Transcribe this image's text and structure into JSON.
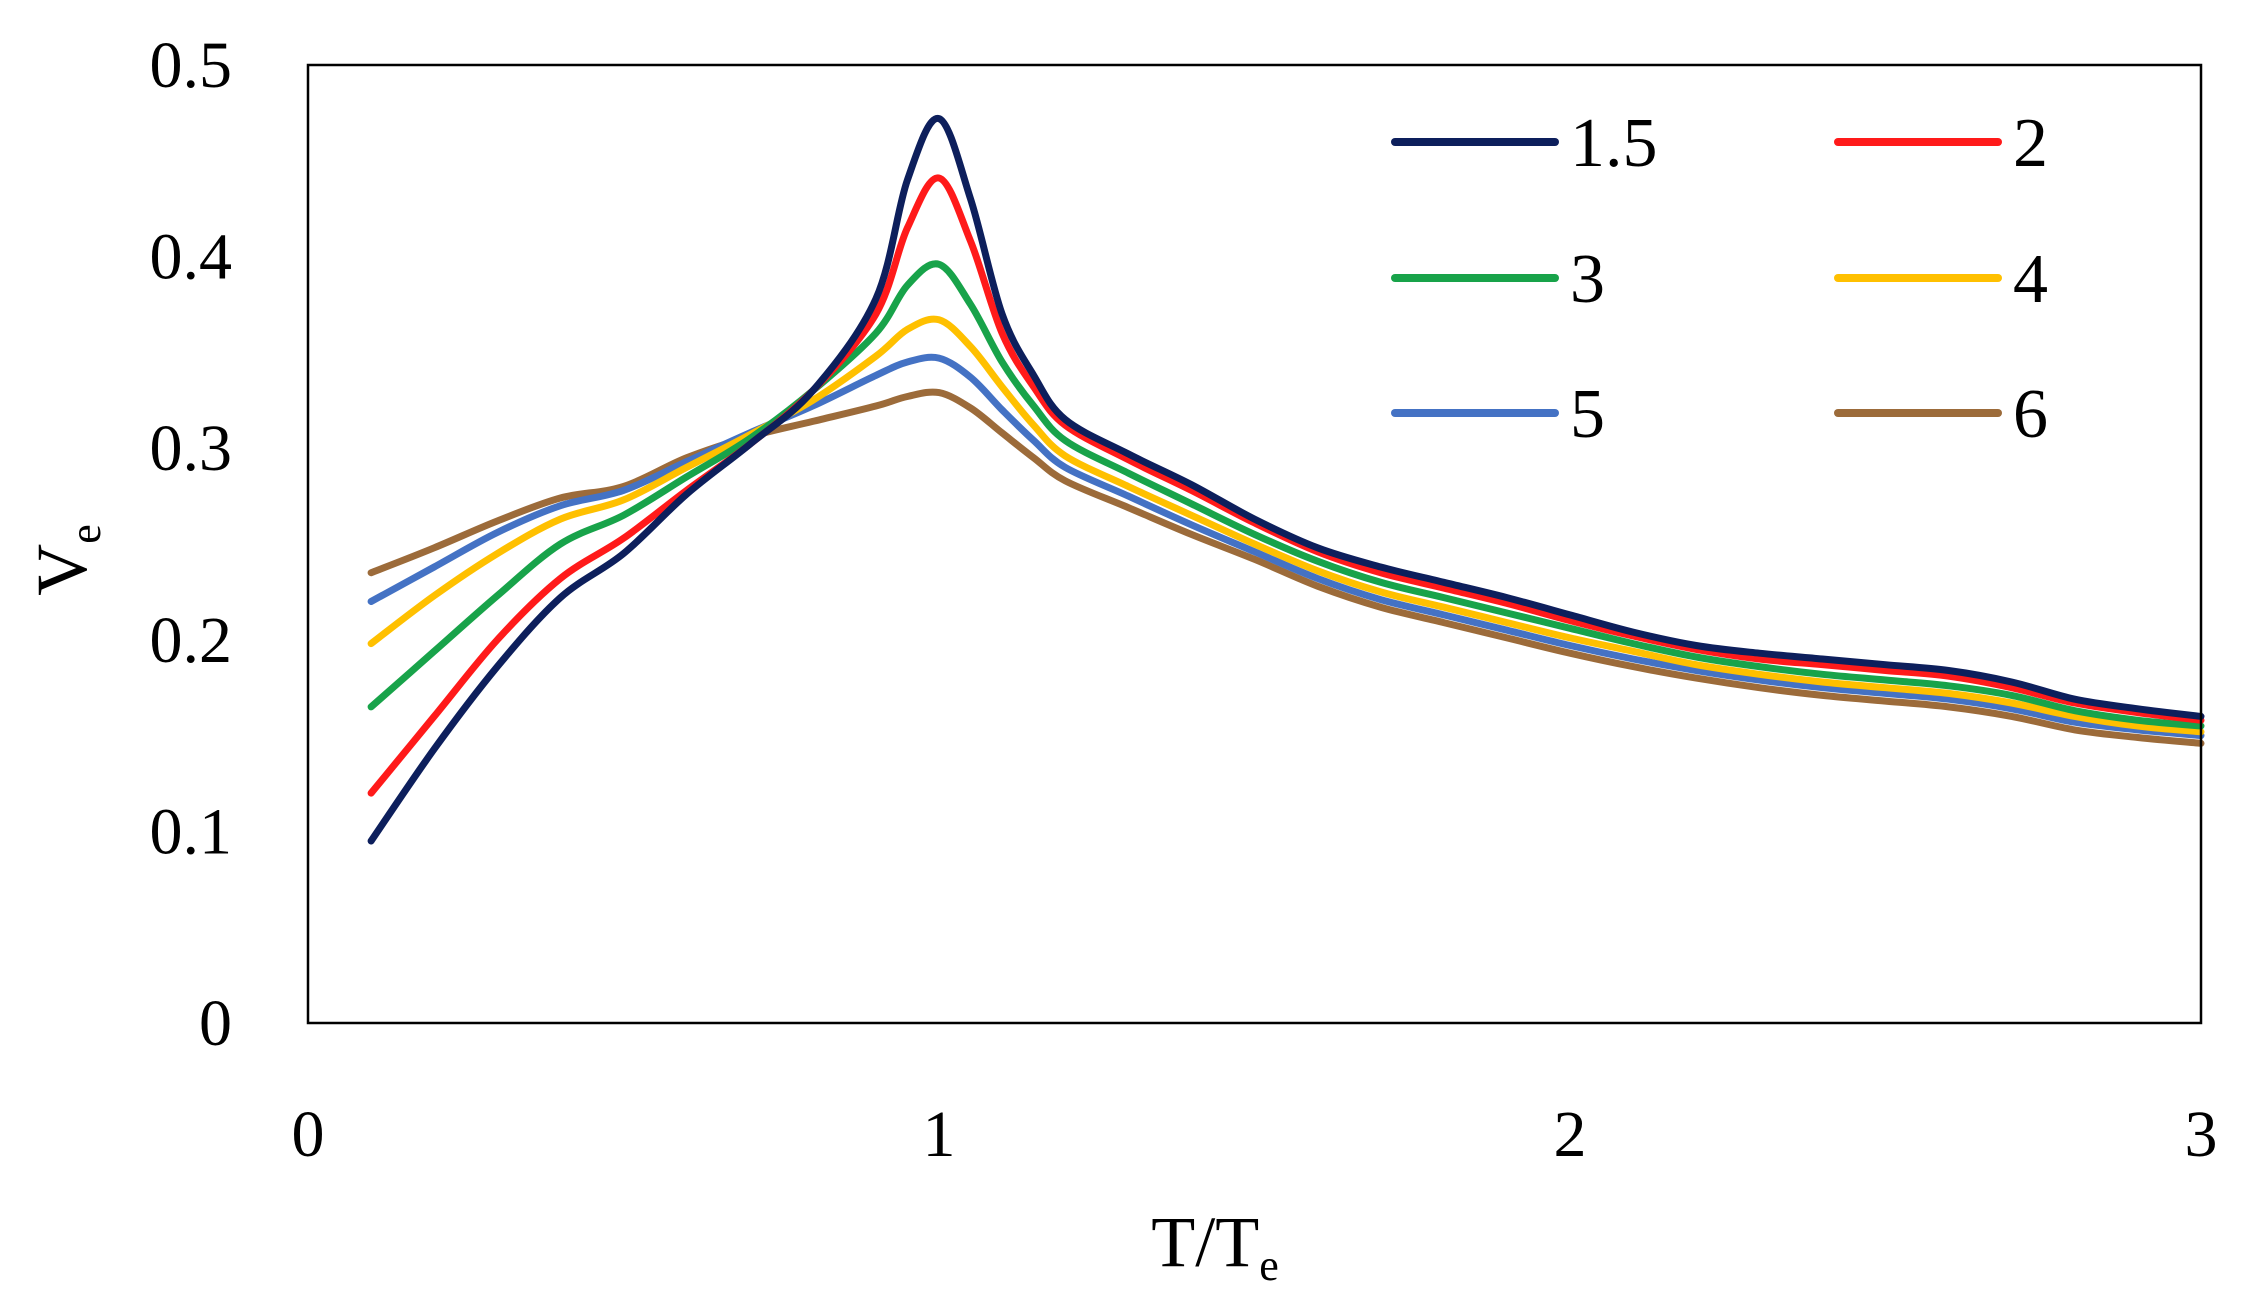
{
  "chart_data": {
    "type": "line",
    "xlabel": {
      "main": "T/T",
      "sub": "e"
    },
    "ylabel": {
      "main": "V",
      "sub": "e"
    },
    "xlim": [
      0,
      3
    ],
    "ylim": [
      0,
      0.5
    ],
    "xticks": [
      0,
      1,
      2,
      3
    ],
    "yticks": [
      0,
      0.1,
      0.2,
      0.3,
      0.4,
      0.5
    ],
    "xtick_labels": [
      "0",
      "1",
      "2",
      "3"
    ],
    "ytick_labels": [
      "0",
      "0.1",
      "0.2",
      "0.3",
      "0.4",
      "0.5"
    ],
    "grid": false,
    "legend_position": "top-right",
    "x": [
      0.1,
      0.2,
      0.3,
      0.4,
      0.5,
      0.6,
      0.7,
      0.8,
      0.9,
      0.95,
      1.0,
      1.05,
      1.1,
      1.15,
      1.2,
      1.3,
      1.4,
      1.5,
      1.6,
      1.7,
      1.8,
      1.9,
      2.0,
      2.1,
      2.2,
      2.3,
      2.4,
      2.5,
      2.6,
      2.7,
      2.8,
      2.9,
      3.0
    ],
    "series": [
      {
        "name": "1.5",
        "color": "#0d1f5c",
        "values": [
          0.095,
          0.143,
          0.186,
          0.222,
          0.245,
          0.276,
          0.302,
          0.33,
          0.378,
          0.44,
          0.472,
          0.43,
          0.37,
          0.338,
          0.315,
          0.297,
          0.281,
          0.263,
          0.248,
          0.238,
          0.23,
          0.222,
          0.213,
          0.204,
          0.197,
          0.193,
          0.19,
          0.187,
          0.184,
          0.178,
          0.169,
          0.164,
          0.16
        ]
      },
      {
        "name": "2",
        "color": "#ff1a1a",
        "values": [
          0.12,
          0.16,
          0.2,
          0.232,
          0.253,
          0.278,
          0.302,
          0.33,
          0.37,
          0.415,
          0.441,
          0.408,
          0.36,
          0.332,
          0.312,
          0.294,
          0.278,
          0.261,
          0.246,
          0.235,
          0.227,
          0.219,
          0.21,
          0.202,
          0.195,
          0.19,
          0.187,
          0.184,
          0.181,
          0.175,
          0.167,
          0.162,
          0.158
        ]
      },
      {
        "name": "3",
        "color": "#18a34a",
        "values": [
          0.165,
          0.194,
          0.223,
          0.25,
          0.265,
          0.285,
          0.305,
          0.33,
          0.36,
          0.385,
          0.396,
          0.375,
          0.345,
          0.322,
          0.304,
          0.287,
          0.271,
          0.255,
          0.241,
          0.23,
          0.222,
          0.214,
          0.206,
          0.198,
          0.191,
          0.186,
          0.182,
          0.179,
          0.176,
          0.171,
          0.163,
          0.158,
          0.155
        ]
      },
      {
        "name": "4",
        "color": "#ffc000",
        "values": [
          0.198,
          0.223,
          0.245,
          0.263,
          0.273,
          0.29,
          0.307,
          0.325,
          0.348,
          0.362,
          0.367,
          0.353,
          0.332,
          0.312,
          0.296,
          0.28,
          0.265,
          0.25,
          0.236,
          0.225,
          0.217,
          0.209,
          0.201,
          0.194,
          0.187,
          0.182,
          0.178,
          0.175,
          0.172,
          0.167,
          0.16,
          0.155,
          0.152
        ]
      },
      {
        "name": "5",
        "color": "#4472c4",
        "values": [
          0.22,
          0.238,
          0.256,
          0.27,
          0.278,
          0.293,
          0.308,
          0.322,
          0.338,
          0.345,
          0.347,
          0.337,
          0.32,
          0.304,
          0.29,
          0.275,
          0.26,
          0.246,
          0.232,
          0.221,
          0.213,
          0.205,
          0.197,
          0.19,
          0.184,
          0.179,
          0.175,
          0.172,
          0.169,
          0.164,
          0.157,
          0.153,
          0.15
        ]
      },
      {
        "name": "6",
        "color": "#9c6b3a",
        "values": [
          0.235,
          0.248,
          0.262,
          0.274,
          0.28,
          0.295,
          0.306,
          0.314,
          0.322,
          0.327,
          0.329,
          0.321,
          0.308,
          0.295,
          0.283,
          0.269,
          0.255,
          0.242,
          0.228,
          0.217,
          0.209,
          0.201,
          0.193,
          0.186,
          0.18,
          0.175,
          0.171,
          0.168,
          0.165,
          0.16,
          0.153,
          0.149,
          0.146
        ]
      }
    ]
  }
}
